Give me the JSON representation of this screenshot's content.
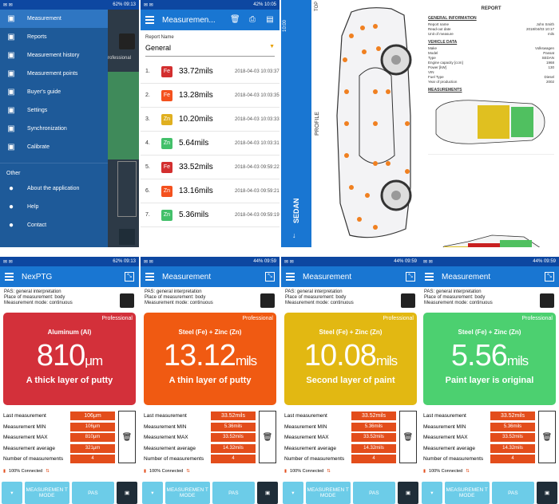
{
  "drawer": {
    "status": {
      "left": "✉ ✉",
      "right": "62% 09:13"
    },
    "items": [
      {
        "label": "Measurement",
        "icon": "keyboard-icon"
      },
      {
        "label": "Reports",
        "icon": "document-icon"
      },
      {
        "label": "Measurement history",
        "icon": "clock-icon"
      },
      {
        "label": "Measurement points",
        "icon": "pin-icon"
      },
      {
        "label": "Buyer's guide",
        "icon": "briefcase-icon"
      },
      {
        "label": "Settings",
        "icon": "gear-icon"
      },
      {
        "label": "Synchronization",
        "icon": "sync-icon"
      },
      {
        "label": "Calibrate",
        "icon": "calibrate-icon"
      }
    ],
    "other_label": "Other",
    "other_items": [
      {
        "label": "About the application",
        "icon": "info-icon"
      },
      {
        "label": "Help",
        "icon": "help-icon"
      },
      {
        "label": "Contact",
        "icon": "mail-icon"
      }
    ],
    "behind_text": "rofessional"
  },
  "reports": {
    "status": {
      "left": "✉ ✉",
      "right": "42% 10:05"
    },
    "title": "Measuremen...",
    "label": "Report Name",
    "selected": "General",
    "rows": [
      {
        "n": "1.",
        "chip": "Fe",
        "color": "#d32f2f",
        "value": "33.72mils",
        "date": "2018-04-03 10:03:37"
      },
      {
        "n": "2.",
        "chip": "Fe",
        "color": "#f4511e",
        "value": "13.28mils",
        "date": "2018-04-03 10:03:35"
      },
      {
        "n": "3.",
        "chip": "Zn",
        "color": "#e0b020",
        "value": "10.20mils",
        "date": "2018-04-03 10:03:33"
      },
      {
        "n": "4.",
        "chip": "Zn",
        "color": "#43c06a",
        "value": "5.64mils",
        "date": "2018-04-03 10:03:31"
      },
      {
        "n": "5.",
        "chip": "Fe",
        "color": "#d32f2f",
        "value": "33.52mils",
        "date": "2018-04-03 09:59:22"
      },
      {
        "n": "6.",
        "chip": "Zn",
        "color": "#f4511e",
        "value": "13.16mils",
        "date": "2018-04-03 09:59:21"
      },
      {
        "n": "7.",
        "chip": "Zn",
        "color": "#43c06a",
        "value": "5.36mils",
        "date": "2018-04-03 09:59:19"
      }
    ]
  },
  "car": {
    "status_time": "10:00",
    "status_batt": "43%",
    "top_label": "TOP",
    "profile_label": "PROFILE",
    "sedan_label": "SEDAN",
    "report": {
      "title": "REPORT",
      "sec1": "GENERAL INFORMATION",
      "rows1": [
        [
          "Report name",
          "John Smith"
        ],
        [
          "Read-out date",
          "2018/04/03 10:17"
        ],
        [
          "Unit of measure",
          "mils"
        ]
      ],
      "sec2": "VEHICLE DATA",
      "rows2": [
        [
          "Make",
          "Volkswagen"
        ],
        [
          "Model",
          "Passat"
        ],
        [
          "Type",
          "SEDAN"
        ],
        [
          "Engine capacity [ccm]",
          "1968"
        ],
        [
          "Power [kW]",
          "130"
        ],
        [
          "VIN",
          ""
        ],
        [
          "Fuel Type",
          "Diesel"
        ],
        [
          "Year of production",
          "2002"
        ]
      ],
      "sec3": "MEASUREMENTS"
    }
  },
  "meters": [
    {
      "status": {
        "left": "✉ ✉",
        "right": "62% 09:13"
      },
      "title": "NexPTG",
      "pas": "PAS: general interpretation",
      "place": "Place of measurement: body",
      "mode": "Measurement mode: continuous",
      "color": "#d3303a",
      "badge": "Professional",
      "material": "Aluminum (Al)",
      "value": "810",
      "unit": "μm",
      "desc": "A thick layer of putty",
      "last": "106μm",
      "min": "106μm",
      "max": "810μm",
      "avg": "321μm",
      "count": "4",
      "conn": "100% Connected",
      "b1": "MEASUREMEN T MODE",
      "b2": "PAS"
    },
    {
      "status": {
        "left": "✉ ✉",
        "right": "44% 09:59"
      },
      "title": "Measurement",
      "pas": "PAS: general interpretation",
      "place": "Place of measurement: body",
      "mode": "Measurement mode: continuous",
      "color": "#f05a12",
      "badge": "Professional",
      "material": "Steel (Fe) + Zinc (Zn)",
      "value": "13.12",
      "unit": "mils",
      "desc": "A thin layer of putty",
      "last": "33.52mils",
      "min": "5.36mils",
      "max": "33.52mils",
      "avg": "14.32mils",
      "count": "4",
      "conn": "100% Connected",
      "b1": "MEASUREMEN T MODE",
      "b2": "PAS"
    },
    {
      "status": {
        "left": "✉ ✉",
        "right": "44% 09:59"
      },
      "title": "Measurement",
      "pas": "PAS: general interpretation",
      "place": "Place of measurement: body",
      "mode": "Measurement mode: continuous",
      "color": "#e2b812",
      "badge": "Professional",
      "material": "Steel (Fe) + Zinc (Zn)",
      "value": "10.08",
      "unit": "mils",
      "desc": "Second layer of paint",
      "last": "33.52mils",
      "min": "5.36mils",
      "max": "33.52mils",
      "avg": "14.32mils",
      "count": "4",
      "conn": "100% Connected",
      "b1": "MEASUREMEN T MODE",
      "b2": "PAS"
    },
    {
      "status": {
        "left": "✉ ✉",
        "right": "44% 09:59"
      },
      "title": "Measurement",
      "pas": "PAS: general interpretation",
      "place": "Place of measurement: body",
      "mode": "Measurement mode: continuous",
      "color": "#4cd070",
      "badge": "Professional",
      "material": "Steel (Fe) + Zinc (Zn)",
      "value": "5.56",
      "unit": "mils",
      "desc": "Paint layer is original",
      "last": "33.52mils",
      "min": "5.36mils",
      "max": "33.52mils",
      "avg": "14.32mils",
      "count": "4",
      "conn": "100% Connected",
      "b1": "MEASUREMEN T MODE",
      "b2": "PAS"
    }
  ],
  "stat_labels": {
    "last": "Last measurement",
    "min": "Measurement MIN",
    "max": "Measurement MAX",
    "avg": "Measurement average",
    "count": "Number of measurements"
  }
}
